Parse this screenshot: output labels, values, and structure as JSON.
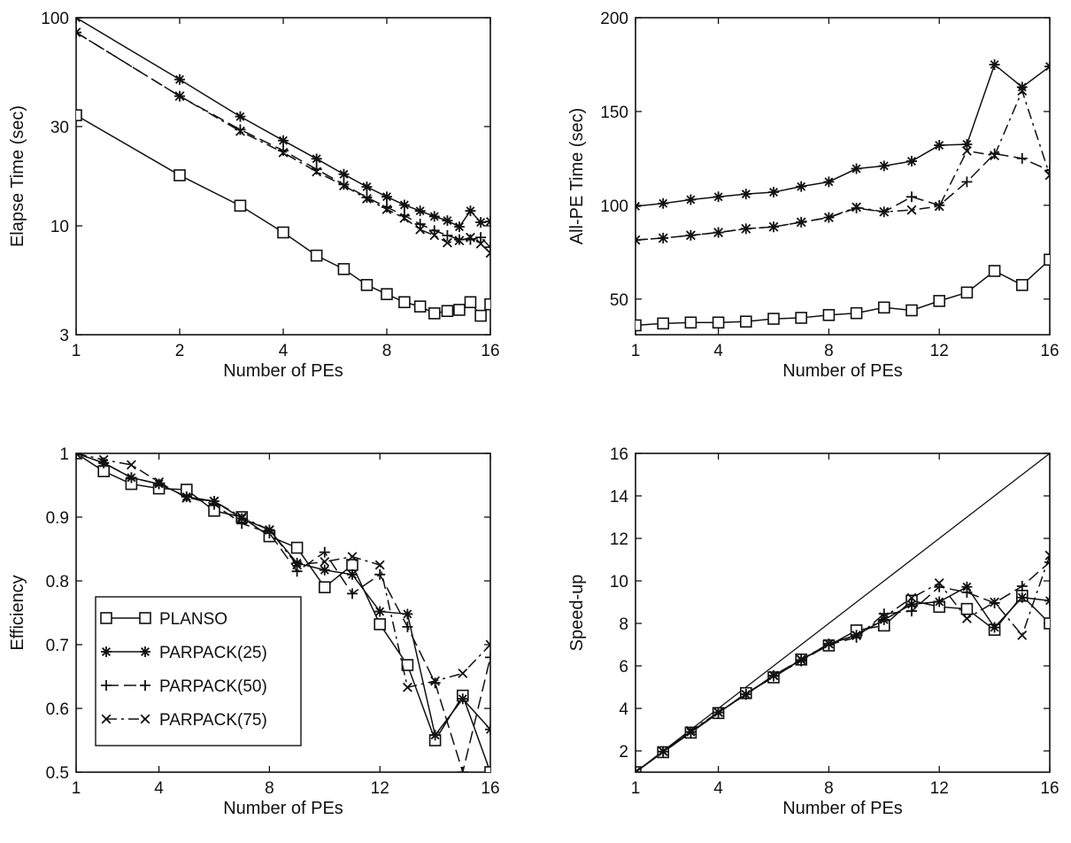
{
  "chart_data": [
    {
      "type": "line",
      "xlabel": "Number of PEs",
      "ylabel": "Elapse Time (sec)",
      "xscale": "log2",
      "yscale": "log",
      "xlim": [
        1,
        16
      ],
      "ylim": [
        3,
        100
      ],
      "xticks": [
        1,
        2,
        4,
        8,
        16
      ],
      "xtick_labels": [
        "1",
        "2",
        "4",
        "8",
        "16"
      ],
      "yticks": [
        3,
        10,
        30,
        100
      ],
      "ytick_labels": [
        "3",
        "10",
        "30",
        "100"
      ],
      "grid": false,
      "x": [
        1,
        2,
        3,
        4,
        5,
        6,
        7,
        8,
        9,
        10,
        11,
        12,
        13,
        14,
        15,
        16
      ],
      "series": [
        {
          "name": "PLANSO",
          "values": [
            34,
            17.5,
            12.5,
            9.3,
            7.2,
            6.2,
            5.2,
            4.7,
            4.3,
            4.1,
            3.8,
            3.9,
            3.95,
            4.3,
            3.7,
            4.2
          ]
        },
        {
          "name": "PARPACK(25)",
          "values": [
            100,
            50.5,
            33.5,
            25.7,
            21.0,
            17.7,
            15.4,
            13.8,
            12.6,
            11.8,
            11.1,
            10.6,
            9.9,
            11.8,
            10.4,
            10.5
          ]
        },
        {
          "name": "PARPACK(50)",
          "values": [
            85,
            42,
            29,
            23,
            18.7,
            15.8,
            13.7,
            12.3,
            11.2,
            10.2,
            9.5,
            9.0,
            8.6,
            8.6,
            8.8,
            7.9
          ]
        },
        {
          "name": "PARPACK(75)",
          "values": [
            85,
            42,
            28.5,
            22.5,
            18.2,
            15.6,
            13.5,
            12.0,
            10.9,
            9.6,
            9.0,
            8.3,
            8.5,
            8.8,
            8.2,
            7.4
          ]
        }
      ]
    },
    {
      "type": "line",
      "xlabel": "Number of PEs",
      "ylabel": "All-PE Time (sec)",
      "xlim": [
        1,
        16
      ],
      "ylim": [
        31,
        200
      ],
      "xticks": [
        1,
        4,
        8,
        12,
        16
      ],
      "xtick_labels": [
        "1",
        "4",
        "8",
        "12",
        "16"
      ],
      "yticks": [
        50,
        100,
        150,
        200
      ],
      "ytick_labels": [
        "50",
        "100",
        "150",
        "200"
      ],
      "grid": false,
      "x": [
        1,
        2,
        3,
        4,
        5,
        6,
        7,
        8,
        9,
        10,
        11,
        12,
        13,
        14,
        15,
        16
      ],
      "series": [
        {
          "name": "PLANSO",
          "values": [
            36,
            37,
            37.5,
            37.5,
            38,
            39.5,
            40,
            41.5,
            42.5,
            45.5,
            44,
            49,
            53.5,
            65,
            57.5,
            71
          ]
        },
        {
          "name": "PARPACK(25)",
          "values": [
            99.5,
            101,
            103,
            104.5,
            106,
            107,
            110,
            112.5,
            119.5,
            121,
            123.5,
            132,
            132.5,
            175,
            163,
            174
          ]
        },
        {
          "name": "PARPACK(50)",
          "values": [
            81.5,
            82.5,
            84,
            85.5,
            87.5,
            88.5,
            91,
            93.5,
            98.5,
            96.5,
            104.5,
            100,
            112.5,
            127.5,
            125,
            118.5
          ]
        },
        {
          "name": "PARPACK(75)",
          "values": [
            81.5,
            82.5,
            84,
            85.5,
            87.5,
            88.5,
            91,
            93.5,
            99,
            96.5,
            97.5,
            99.5,
            129,
            126.5,
            161,
            116
          ]
        }
      ]
    },
    {
      "type": "line",
      "xlabel": "Number of PEs",
      "ylabel": "Efficiency",
      "xlim": [
        1,
        16
      ],
      "ylim": [
        0.5,
        1
      ],
      "xticks": [
        1,
        4,
        8,
        12,
        16
      ],
      "xtick_labels": [
        "1",
        "4",
        "8",
        "12",
        "16"
      ],
      "yticks": [
        0.5,
        0.6,
        0.7,
        0.8,
        0.9,
        1
      ],
      "ytick_labels": [
        "0.5",
        "0.6",
        "0.7",
        "0.8",
        "0.9",
        "1"
      ],
      "grid": false,
      "legend": {
        "position": "bottom-left",
        "entries": [
          "PLANSO",
          "PARPACK(25)",
          "PARPACK(50)",
          "PARPACK(75)"
        ]
      },
      "x": [
        1,
        2,
        3,
        4,
        5,
        6,
        7,
        8,
        9,
        10,
        11,
        12,
        13,
        14,
        15,
        16
      ],
      "series": [
        {
          "name": "PLANSO",
          "values": [
            1.0,
            0.972,
            0.952,
            0.945,
            0.943,
            0.91,
            0.9,
            0.87,
            0.852,
            0.79,
            0.825,
            0.732,
            0.668,
            0.55,
            0.62,
            0.5
          ]
        },
        {
          "name": "PARPACK(25)",
          "values": [
            1.0,
            0.985,
            0.962,
            0.952,
            0.932,
            0.925,
            0.898,
            0.88,
            0.828,
            0.817,
            0.81,
            0.752,
            0.748,
            0.558,
            0.615,
            0.567
          ]
        },
        {
          "name": "PARPACK(50)",
          "values": [
            1.0,
            0.985,
            0.962,
            0.952,
            0.932,
            0.92,
            0.89,
            0.875,
            0.815,
            0.845,
            0.78,
            0.81,
            0.728,
            0.64,
            0.5,
            0.68
          ]
        },
        {
          "name": "PARPACK(75)",
          "values": [
            1.0,
            0.99,
            0.982,
            0.955,
            0.93,
            0.925,
            0.9,
            0.88,
            0.825,
            0.83,
            0.838,
            0.825,
            0.633,
            0.643,
            0.655,
            0.7
          ]
        }
      ]
    },
    {
      "type": "line",
      "xlabel": "Number of PEs",
      "ylabel": "Speed-up",
      "xlim": [
        1,
        16
      ],
      "ylim": [
        1,
        16
      ],
      "xticks": [
        1,
        4,
        8,
        12,
        16
      ],
      "xtick_labels": [
        "1",
        "4",
        "8",
        "12",
        "16"
      ],
      "yticks": [
        2,
        4,
        6,
        8,
        10,
        12,
        14,
        16
      ],
      "ytick_labels": [
        "2",
        "4",
        "6",
        "8",
        "10",
        "12",
        "14",
        "16"
      ],
      "grid": false,
      "x": [
        1,
        2,
        3,
        4,
        5,
        6,
        7,
        8,
        9,
        10,
        11,
        12,
        13,
        14,
        15,
        16
      ],
      "series": [
        {
          "name": "",
          "values": [
            1,
            2,
            3,
            4,
            5,
            6,
            7,
            8,
            9,
            10,
            11,
            12,
            13,
            14,
            15,
            16
          ]
        },
        {
          "name": "PLANSO",
          "values": [
            1,
            1.94,
            2.86,
            3.78,
            4.72,
            5.46,
            6.3,
            6.96,
            7.67,
            7.9,
            9.07,
            8.78,
            8.68,
            7.7,
            9.3,
            8.0
          ]
        },
        {
          "name": "PARPACK(25)",
          "values": [
            1,
            1.97,
            2.89,
            3.81,
            4.66,
            5.55,
            6.28,
            7.04,
            7.45,
            8.17,
            8.9,
            9.02,
            9.72,
            7.81,
            9.22,
            9.07
          ]
        },
        {
          "name": "PARPACK(50)",
          "values": [
            1,
            1.97,
            2.89,
            3.81,
            4.66,
            5.52,
            6.23,
            7.0,
            7.34,
            8.45,
            8.58,
            9.72,
            9.46,
            8.96,
            9.75,
            10.88
          ]
        },
        {
          "name": "PARPACK(75)",
          "values": [
            1,
            1.98,
            2.95,
            3.82,
            4.65,
            5.55,
            6.3,
            7.04,
            7.43,
            8.3,
            9.2,
            9.9,
            8.23,
            9.0,
            7.44,
            11.2
          ]
        }
      ]
    }
  ]
}
